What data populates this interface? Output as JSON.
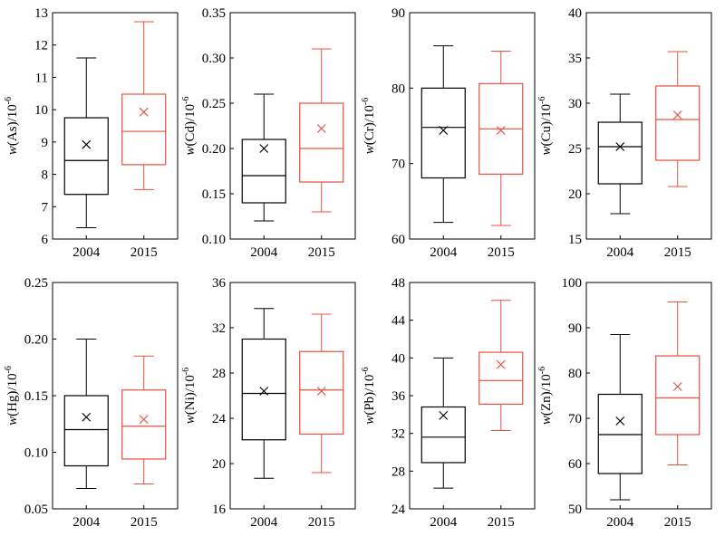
{
  "colors": {
    "y2004": "#000000",
    "y2015": "#e8503f",
    "axis": "#000000"
  },
  "chart_data": [
    {
      "type": "box",
      "ylabel": {
        "var": "w",
        "element": "As",
        "unit": "/10",
        "exp": "-6"
      },
      "ylim": [
        6,
        13
      ],
      "yticks": [
        6,
        7,
        8,
        9,
        10,
        11,
        12,
        13
      ],
      "ytick_labels": [
        "6",
        "7",
        "8",
        "9",
        "10",
        "11",
        "12",
        "13"
      ],
      "categories": [
        "2004",
        "2015"
      ],
      "boxes": [
        {
          "name": "2004",
          "min": 6.35,
          "q1": 7.38,
          "median": 8.43,
          "q3": 9.75,
          "max": 11.6,
          "mean": 8.92
        },
        {
          "name": "2015",
          "min": 7.53,
          "q1": 8.3,
          "median": 9.33,
          "q3": 10.48,
          "max": 12.72,
          "mean": 9.93
        }
      ]
    },
    {
      "type": "box",
      "ylabel": {
        "var": "w",
        "element": "Cd",
        "unit": "/10",
        "exp": "-6"
      },
      "ylim": [
        0.1,
        0.35
      ],
      "yticks": [
        0.1,
        0.15,
        0.2,
        0.25,
        0.3,
        0.35
      ],
      "ytick_labels": [
        "0.10",
        "0.15",
        "0.20",
        "0.25",
        "0.30",
        "0.35"
      ],
      "categories": [
        "2004",
        "2015"
      ],
      "boxes": [
        {
          "name": "2004",
          "min": 0.12,
          "q1": 0.14,
          "median": 0.17,
          "q3": 0.21,
          "max": 0.26,
          "mean": 0.2
        },
        {
          "name": "2015",
          "min": 0.13,
          "q1": 0.163,
          "median": 0.2,
          "q3": 0.25,
          "max": 0.31,
          "mean": 0.222
        }
      ]
    },
    {
      "type": "box",
      "ylabel": {
        "var": "w",
        "element": "Cr",
        "unit": "/10",
        "exp": "-6"
      },
      "ylim": [
        60,
        90
      ],
      "yticks": [
        60,
        70,
        80,
        90
      ],
      "ytick_labels": [
        "60",
        "70",
        "80",
        "90"
      ],
      "categories": [
        "2004",
        "2015"
      ],
      "boxes": [
        {
          "name": "2004",
          "min": 62.2,
          "q1": 68.1,
          "median": 74.8,
          "q3": 80.0,
          "max": 85.6,
          "mean": 74.4
        },
        {
          "name": "2015",
          "min": 61.8,
          "q1": 68.6,
          "median": 74.6,
          "q3": 80.6,
          "max": 84.9,
          "mean": 74.4
        }
      ]
    },
    {
      "type": "box",
      "ylabel": {
        "var": "w",
        "element": "Cu",
        "unit": "/10",
        "exp": "-6"
      },
      "ylim": [
        15,
        40
      ],
      "yticks": [
        15,
        20,
        25,
        30,
        35,
        40
      ],
      "ytick_labels": [
        "15",
        "20",
        "25",
        "30",
        "35",
        "40"
      ],
      "categories": [
        "2004",
        "2015"
      ],
      "boxes": [
        {
          "name": "2004",
          "min": 17.8,
          "q1": 21.1,
          "median": 25.2,
          "q3": 27.9,
          "max": 31.0,
          "mean": 25.2
        },
        {
          "name": "2015",
          "min": 20.8,
          "q1": 23.7,
          "median": 28.2,
          "q3": 31.9,
          "max": 35.7,
          "mean": 28.7
        }
      ]
    },
    {
      "type": "box",
      "ylabel": {
        "var": "w",
        "element": "Hg",
        "unit": "/10",
        "exp": "-6"
      },
      "ylim": [
        0.05,
        0.25
      ],
      "yticks": [
        0.05,
        0.1,
        0.15,
        0.2,
        0.25
      ],
      "ytick_labels": [
        "0.05",
        "0.10",
        "0.15",
        "0.20",
        "0.25"
      ],
      "categories": [
        "2004",
        "2015"
      ],
      "boxes": [
        {
          "name": "2004",
          "min": 0.068,
          "q1": 0.088,
          "median": 0.12,
          "q3": 0.15,
          "max": 0.2,
          "mean": 0.131
        },
        {
          "name": "2015",
          "min": 0.072,
          "q1": 0.094,
          "median": 0.123,
          "q3": 0.155,
          "max": 0.185,
          "mean": 0.129
        }
      ]
    },
    {
      "type": "box",
      "ylabel": {
        "var": "w",
        "element": "Ni",
        "unit": "/10",
        "exp": "-6"
      },
      "ylim": [
        16,
        36
      ],
      "yticks": [
        16,
        20,
        24,
        28,
        32,
        36
      ],
      "ytick_labels": [
        "16",
        "20",
        "24",
        "28",
        "32",
        "36"
      ],
      "categories": [
        "2004",
        "2015"
      ],
      "boxes": [
        {
          "name": "2004",
          "min": 18.7,
          "q1": 22.1,
          "median": 26.2,
          "q3": 31.0,
          "max": 33.7,
          "mean": 26.4
        },
        {
          "name": "2015",
          "min": 19.2,
          "q1": 22.6,
          "median": 26.5,
          "q3": 29.9,
          "max": 33.2,
          "mean": 26.4
        }
      ]
    },
    {
      "type": "box",
      "ylabel": {
        "var": "w",
        "element": "Pb",
        "unit": "/10",
        "exp": "-6"
      },
      "ylim": [
        24,
        48
      ],
      "yticks": [
        24,
        28,
        32,
        36,
        40,
        44,
        48
      ],
      "ytick_labels": [
        "24",
        "28",
        "32",
        "36",
        "40",
        "44",
        "48"
      ],
      "categories": [
        "2004",
        "2015"
      ],
      "boxes": [
        {
          "name": "2004",
          "min": 26.2,
          "q1": 28.9,
          "median": 31.6,
          "q3": 34.8,
          "max": 40.0,
          "mean": 33.9
        },
        {
          "name": "2015",
          "min": 32.3,
          "q1": 35.1,
          "median": 37.6,
          "q3": 40.6,
          "max": 46.1,
          "mean": 39.3
        }
      ]
    },
    {
      "type": "box",
      "ylabel": {
        "var": "w",
        "element": "Zn",
        "unit": "/10",
        "exp": "-6"
      },
      "ylim": [
        50,
        100
      ],
      "yticks": [
        50,
        60,
        70,
        80,
        90,
        100
      ],
      "ytick_labels": [
        "50",
        "60",
        "70",
        "80",
        "90",
        "100"
      ],
      "categories": [
        "2004",
        "2015"
      ],
      "boxes": [
        {
          "name": "2004",
          "min": 52.0,
          "q1": 57.8,
          "median": 66.4,
          "q3": 75.3,
          "max": 88.5,
          "mean": 69.4
        },
        {
          "name": "2015",
          "min": 59.7,
          "q1": 66.4,
          "median": 74.5,
          "q3": 83.8,
          "max": 95.7,
          "mean": 77.0
        }
      ]
    }
  ]
}
